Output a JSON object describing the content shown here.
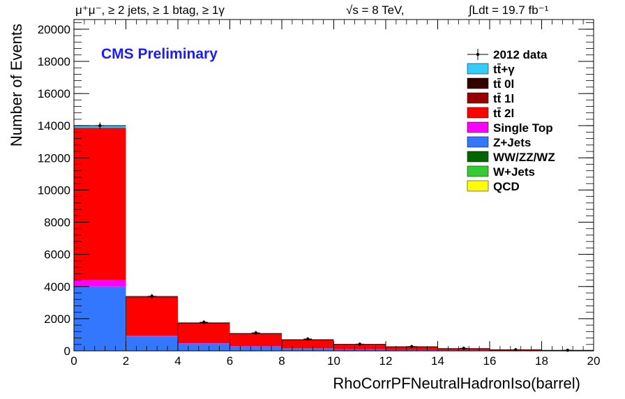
{
  "header": {
    "selection": "μ⁺μ⁻, ≥ 2 jets, ≥ 1 btag, ≥ 1γ",
    "energy": "√s = 8 TeV,",
    "lumi": "∫Ldt = 19.7 fb⁻¹"
  },
  "cms_label": "CMS Preliminary",
  "chart_data": {
    "type": "bar",
    "stacked": true,
    "xlabel": "RhoCorrPFNeutralHadronIso(barrel)",
    "ylabel": "Number of Events",
    "xlim": [
      0,
      20
    ],
    "ylim": [
      0,
      20600
    ],
    "bin_edges": [
      0,
      2,
      4,
      6,
      8,
      10,
      12,
      14,
      16,
      18,
      20
    ],
    "x_ticks": [
      0,
      2,
      4,
      6,
      8,
      10,
      12,
      14,
      16,
      18,
      20
    ],
    "y_ticks": [
      0,
      2000,
      4000,
      6000,
      8000,
      10000,
      12000,
      14000,
      16000,
      18000,
      20000
    ],
    "legend_position": "top-right",
    "series": [
      {
        "name": "QCD",
        "color": "#ffff00",
        "values": [
          0,
          0,
          0,
          0,
          0,
          0,
          0,
          0,
          0,
          0
        ]
      },
      {
        "name": "W+Jets",
        "color": "#33cc33",
        "values": [
          0,
          0,
          0,
          0,
          0,
          0,
          0,
          0,
          0,
          0
        ]
      },
      {
        "name": "WW/ZZ/WZ",
        "color": "#006600",
        "values": [
          0,
          0,
          0,
          0,
          0,
          0,
          0,
          0,
          0,
          0
        ]
      },
      {
        "name": "Z+Jets",
        "color": "#3377ff",
        "values": [
          4000,
          900,
          450,
          280,
          160,
          100,
          60,
          30,
          12,
          6
        ]
      },
      {
        "name": "Single Top",
        "color": "#ff00ff",
        "values": [
          420,
          40,
          20,
          10,
          6,
          4,
          2,
          1,
          1,
          0
        ]
      },
      {
        "name": "tt̄ 2l",
        "color": "#ff0000",
        "values": [
          9400,
          2400,
          1250,
          780,
          520,
          300,
          190,
          110,
          50,
          25
        ]
      },
      {
        "name": "tt̄ 1l",
        "color": "#990000",
        "values": [
          40,
          10,
          5,
          3,
          2,
          1,
          1,
          0,
          0,
          0
        ]
      },
      {
        "name": "tt̄ 0l",
        "color": "#330000",
        "values": [
          5,
          1,
          1,
          0,
          0,
          0,
          0,
          0,
          0,
          0
        ]
      },
      {
        "name": "tt̄+γ",
        "color": "#33ccff",
        "values": [
          140,
          30,
          15,
          8,
          5,
          3,
          2,
          1,
          1,
          0
        ]
      }
    ],
    "data": {
      "name": "2012 data",
      "x": [
        1,
        3,
        5,
        7,
        9,
        11,
        13,
        15,
        17,
        19
      ],
      "y": [
        14000,
        3400,
        1780,
        1120,
        740,
        420,
        270,
        160,
        70,
        40
      ]
    },
    "legend_order": [
      "2012 data",
      "tt̄+γ",
      "tt̄ 0l",
      "tt̄ 1l",
      "tt̄ 2l",
      "Single Top",
      "Z+Jets",
      "WW/ZZ/WZ",
      "W+Jets",
      "QCD"
    ]
  }
}
